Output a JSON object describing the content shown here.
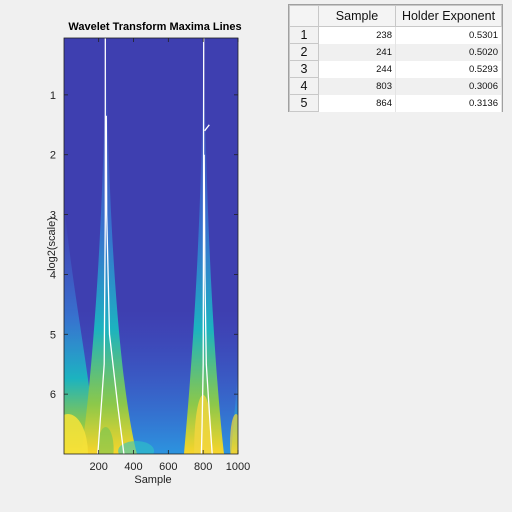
{
  "figure": {
    "title": "Wavelet Transform Maxima Lines",
    "xlabel": "Sample",
    "ylabel": "log2(scale)"
  },
  "chart_data": {
    "type": "heatmap",
    "title": "Wavelet Transform Maxima Lines",
    "xlabel": "Sample",
    "ylabel": "log2(scale)",
    "xlim": [
      1,
      1000
    ],
    "ylim": [
      0.05,
      7.0
    ],
    "y_reversed": true,
    "x_ticks": [
      200,
      400,
      600,
      800,
      1000
    ],
    "y_ticks": [
      1,
      2,
      3,
      4,
      5,
      6
    ],
    "colormap": "parula",
    "maxima_lines": [
      {
        "name": "line-238",
        "points": [
          [
            238,
            0.05
          ],
          [
            238,
            3.0
          ],
          [
            232,
            5.5
          ],
          [
            210,
            6.4
          ],
          [
            195,
            7.0
          ]
        ]
      },
      {
        "name": "line-244",
        "points": [
          [
            244,
            1.35
          ],
          [
            246,
            3.0
          ],
          [
            262,
            5.0
          ],
          [
            310,
            6.2
          ],
          [
            345,
            7.0
          ]
        ]
      },
      {
        "name": "line-803",
        "points": [
          [
            803,
            0.05
          ],
          [
            802,
            3.0
          ],
          [
            800,
            5.5
          ],
          [
            794,
            6.5
          ],
          [
            790,
            7.0
          ]
        ]
      },
      {
        "name": "line-864",
        "points": [
          [
            808,
            1.6
          ],
          [
            835,
            1.5
          ]
        ]
      },
      {
        "name": "line-803b",
        "points": [
          [
            806,
            2.0
          ],
          [
            810,
            4.0
          ],
          [
            818,
            5.5
          ],
          [
            840,
            6.5
          ],
          [
            852,
            7.0
          ]
        ]
      }
    ]
  },
  "table": {
    "headers": [
      "",
      "Sample",
      "Holder Exponent"
    ],
    "rows": [
      {
        "index": "1",
        "sample": "238",
        "holder": "0.5301"
      },
      {
        "index": "2",
        "sample": "241",
        "holder": "0.5020"
      },
      {
        "index": "3",
        "sample": "244",
        "holder": "0.5293"
      },
      {
        "index": "4",
        "sample": "803",
        "holder": "0.3006"
      },
      {
        "index": "5",
        "sample": "864",
        "holder": "0.3136"
      }
    ]
  }
}
